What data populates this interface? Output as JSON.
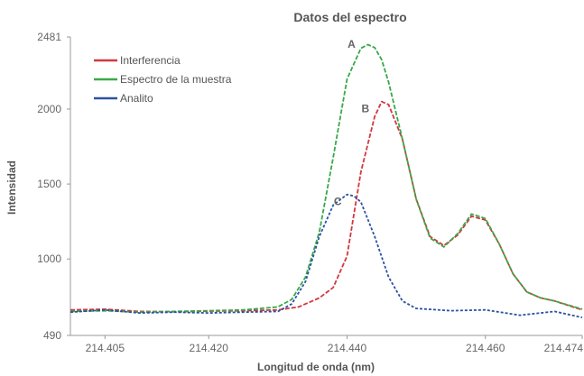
{
  "chart_data": {
    "type": "line",
    "title": "Datos del espectro",
    "xlabel": "Longitud de onda (nm)",
    "ylabel": "Intensidad",
    "xlim": [
      214.4,
      214.474
    ],
    "ylim": [
      490,
      2481
    ],
    "xticks": [
      {
        "value": 214.405,
        "label": "214.405"
      },
      {
        "value": 214.42,
        "label": "214.420"
      },
      {
        "value": 214.44,
        "label": "214.440"
      },
      {
        "value": 214.46,
        "label": "214.460"
      },
      {
        "value": 214.474,
        "label": "214.474"
      }
    ],
    "yticks": [
      {
        "value": 490,
        "label": "490"
      },
      {
        "value": 1000,
        "label": "1000"
      },
      {
        "value": 1500,
        "label": "1500"
      },
      {
        "value": 2000,
        "label": "2000"
      },
      {
        "value": 2481,
        "label": "2481"
      }
    ],
    "legend_position": "top-left",
    "grid": false,
    "series": [
      {
        "name": "Interferencia",
        "color": "#d2383f",
        "x": [
          214.4,
          214.405,
          214.41,
          214.415,
          214.42,
          214.425,
          214.43,
          214.433,
          214.436,
          214.438,
          214.44,
          214.442,
          214.444,
          214.445,
          214.446,
          214.448,
          214.45,
          214.452,
          214.454,
          214.456,
          214.458,
          214.46,
          214.462,
          214.464,
          214.466,
          214.468,
          214.47,
          214.474
        ],
        "y": [
          660,
          665,
          650,
          648,
          652,
          655,
          660,
          680,
          740,
          810,
          1020,
          1580,
          1950,
          2050,
          2030,
          1800,
          1400,
          1150,
          1090,
          1160,
          1285,
          1260,
          1100,
          900,
          780,
          740,
          720,
          660
        ]
      },
      {
        "name": "Espectro de la muestra",
        "color": "#3aa84a",
        "x": [
          214.4,
          214.405,
          214.41,
          214.415,
          214.42,
          214.425,
          214.43,
          214.432,
          214.434,
          214.436,
          214.438,
          214.44,
          214.442,
          214.443,
          214.444,
          214.445,
          214.446,
          214.448,
          214.45,
          214.452,
          214.454,
          214.456,
          214.458,
          214.46,
          214.462,
          214.464,
          214.466,
          214.468,
          214.47,
          214.474
        ],
        "y": [
          650,
          655,
          645,
          650,
          655,
          660,
          680,
          730,
          880,
          1180,
          1680,
          2200,
          2405,
          2430,
          2410,
          2330,
          2180,
          1800,
          1400,
          1140,
          1080,
          1170,
          1300,
          1270,
          1100,
          900,
          780,
          740,
          720,
          665
        ]
      },
      {
        "name": "Analito",
        "color": "#2a52a2",
        "x": [
          214.4,
          214.405,
          214.41,
          214.415,
          214.42,
          214.425,
          214.43,
          214.432,
          214.434,
          214.436,
          214.438,
          214.44,
          214.441,
          214.442,
          214.444,
          214.446,
          214.448,
          214.45,
          214.455,
          214.46,
          214.465,
          214.47,
          214.474
        ],
        "y": [
          645,
          660,
          640,
          645,
          640,
          645,
          650,
          700,
          850,
          1150,
          1360,
          1430,
          1420,
          1380,
          1150,
          880,
          720,
          670,
          655,
          660,
          625,
          650,
          610
        ]
      }
    ],
    "annotations": [
      {
        "label": "A",
        "x": 214.443,
        "y": 2481
      },
      {
        "label": "B",
        "x": 214.445,
        "y": 2050
      },
      {
        "label": "C",
        "x": 214.441,
        "y": 1430
      }
    ]
  }
}
